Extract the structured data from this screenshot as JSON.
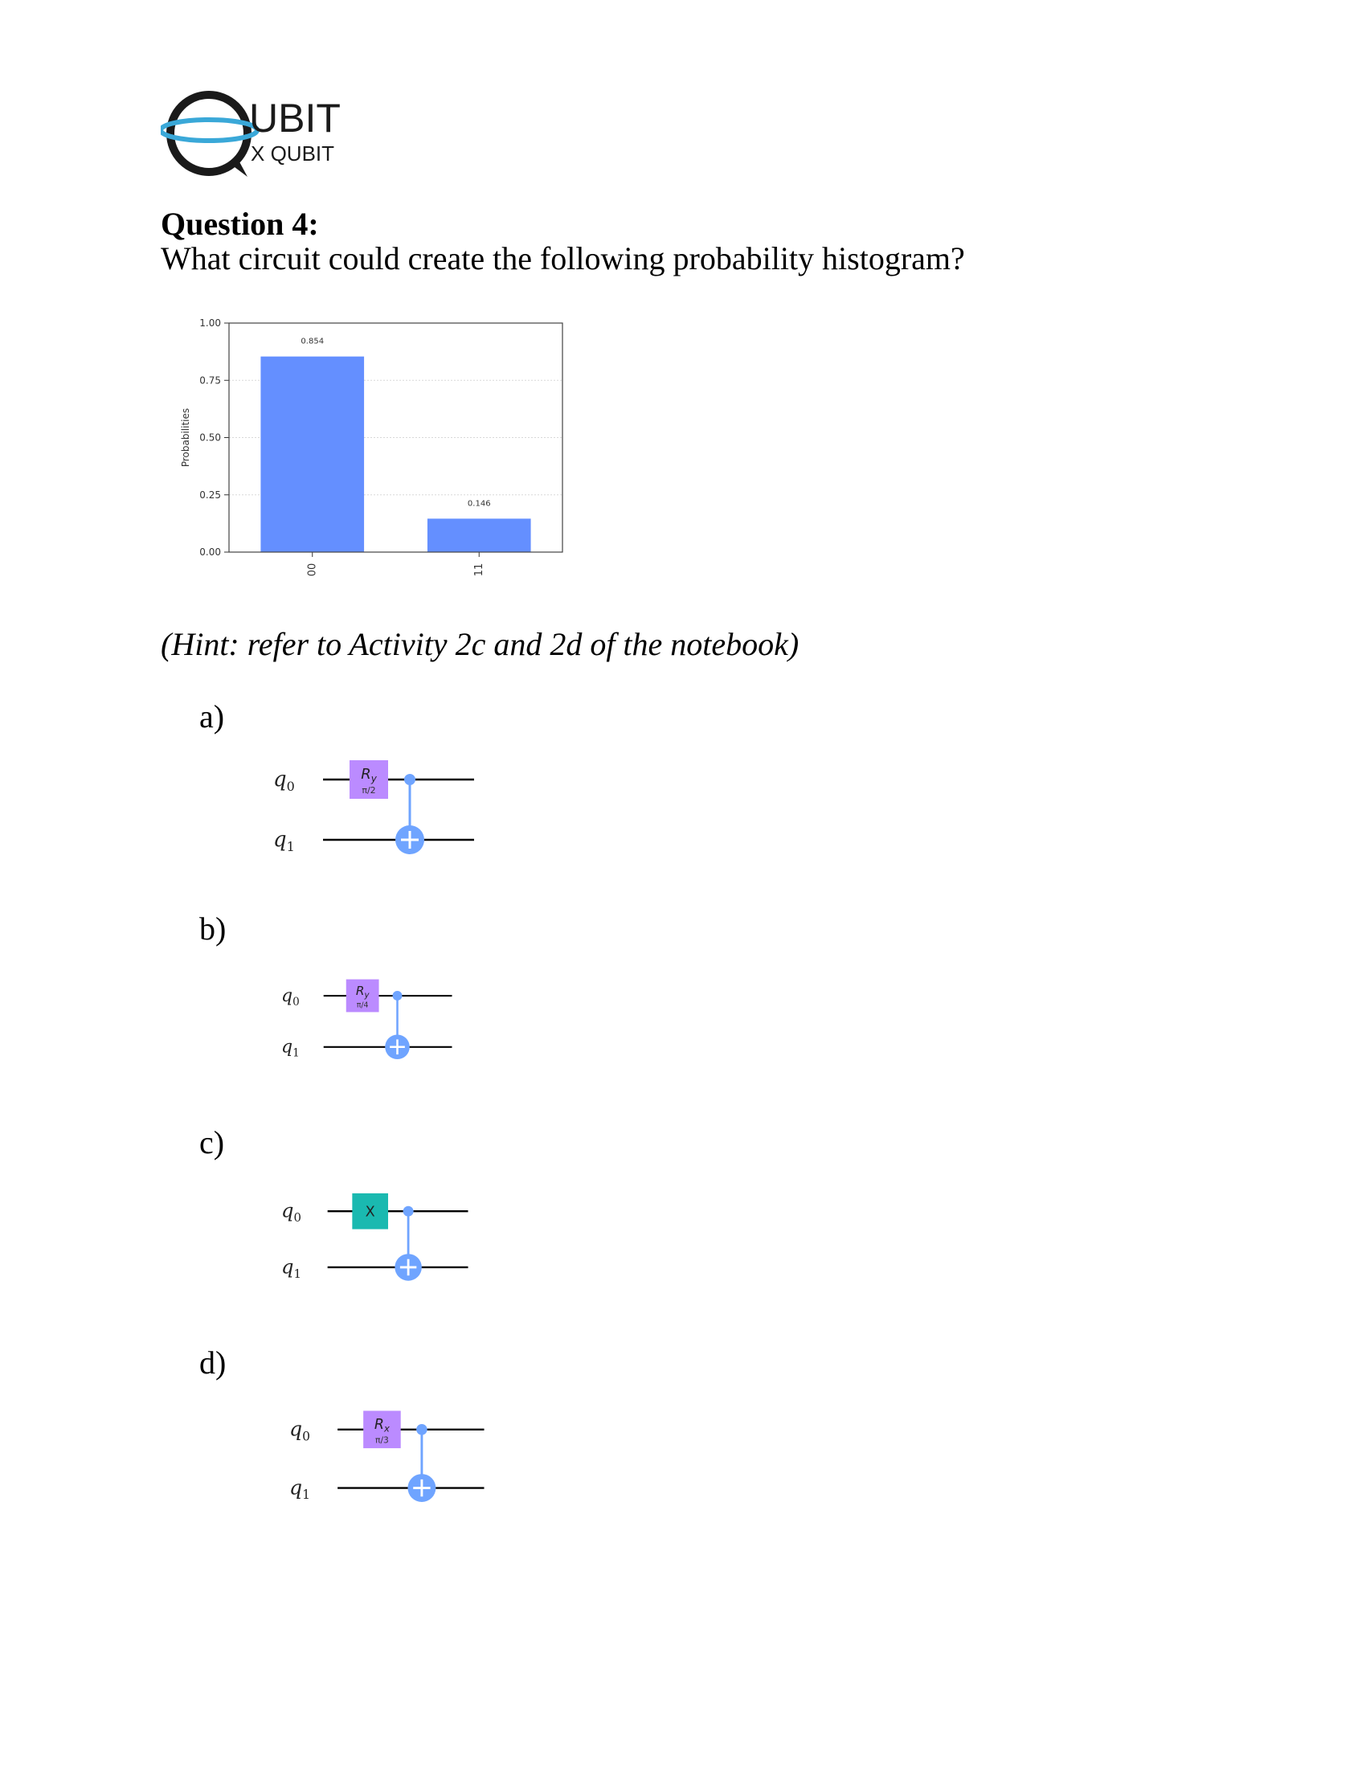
{
  "logo": {
    "word": "UBIT",
    "sub": "X QUBIT",
    "colors": {
      "ring": "#1a1a1a",
      "ellipse": "#3aa8d8",
      "text": "#1a1a1a"
    }
  },
  "question": {
    "title": "Question 4:",
    "text": "What circuit could create the following probability histogram?"
  },
  "hint": "(Hint: refer to Activity 2c and 2d of the notebook)",
  "chart_data": {
    "type": "bar",
    "categories": [
      "00",
      "11"
    ],
    "values": [
      0.854,
      0.146
    ],
    "data_labels": [
      "0.854",
      "0.146"
    ],
    "ylabel": "Probabilities",
    "ylim": [
      0,
      1.0
    ],
    "yticks": [
      "0.00",
      "0.25",
      "0.50",
      "0.75",
      "1.00"
    ],
    "grid": true,
    "bar_color": "#648fff",
    "tick_label_rotation": "vertical"
  },
  "options": [
    {
      "label": "a)",
      "gate": {
        "name": "R",
        "sub": "y",
        "param": "π/2",
        "color": "#bb8bff"
      },
      "qubits": [
        "q",
        "q"
      ],
      "qsub": [
        "0",
        "1"
      ]
    },
    {
      "label": "b)",
      "gate": {
        "name": "R",
        "sub": "y",
        "param": "π/4",
        "color": "#bb8bff"
      },
      "qubits": [
        "q",
        "q"
      ],
      "qsub": [
        "0",
        "1"
      ]
    },
    {
      "label": "c)",
      "gate": {
        "name": "X",
        "sub": "",
        "param": "",
        "color": "#1ab9b0"
      },
      "qubits": [
        "q",
        "q"
      ],
      "qsub": [
        "0",
        "1"
      ]
    },
    {
      "label": "d)",
      "gate": {
        "name": "R",
        "sub": "x",
        "param": "π/3",
        "color": "#bb8bff"
      },
      "qubits": [
        "q",
        "q"
      ],
      "qsub": [
        "0",
        "1"
      ]
    }
  ],
  "cnot_color": "#6fa4ff"
}
